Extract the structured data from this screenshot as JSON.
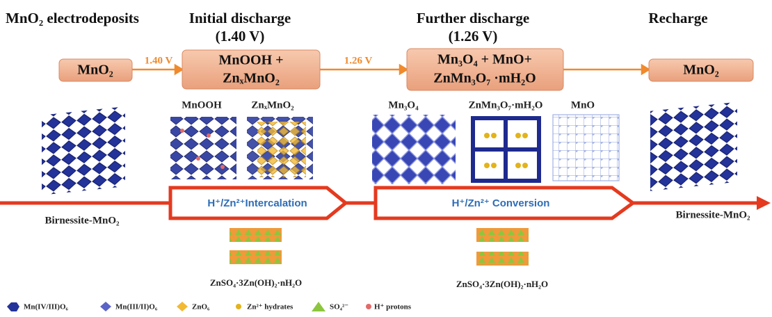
{
  "stages": [
    {
      "title": "MnO₂ electrodeposits"
    },
    {
      "title": "Initial discharge",
      "subtitle": "(1.40 V)"
    },
    {
      "title": "Further discharge",
      "subtitle": "(1.26 V)"
    },
    {
      "title": "Recharge"
    }
  ],
  "flow": {
    "boxes": [
      {
        "lines": [
          "MnO₂"
        ]
      },
      {
        "lines": [
          "MnOOH +",
          "ZnₓMnO₂"
        ]
      },
      {
        "lines": [
          "Mn₃O₄ + MnO+",
          "ZnMn₃O₇ ·mH₂O"
        ]
      },
      {
        "lines": [
          "MnO₂"
        ]
      }
    ],
    "voltages": [
      "1.40 V",
      "1.26 V"
    ]
  },
  "structures": [
    "MnOOH",
    "ZnₓMnO₂",
    "Mn₃O₄",
    "ZnMn₃O₇·mH₂O",
    "MnO"
  ],
  "phase_labels": [
    "Birnessite-MnO₂",
    "Birnessite-MnO₂"
  ],
  "processes": [
    "H⁺/Zn²⁺Intercalation",
    "H⁺/Zn²⁺ Conversion"
  ],
  "byproducts": [
    "ZnSO₄·3Zn(OH)₂·nH₂O",
    "ZnSO₄·3Zn(OH)₂·nH₂O"
  ],
  "legend": [
    "Mn(IV/III)O₆",
    "Mn(III/II)O₆",
    "ZnO₆",
    "Zn²⁺ hydrates",
    "SO₄²⁻",
    "H⁺ protons"
  ]
}
